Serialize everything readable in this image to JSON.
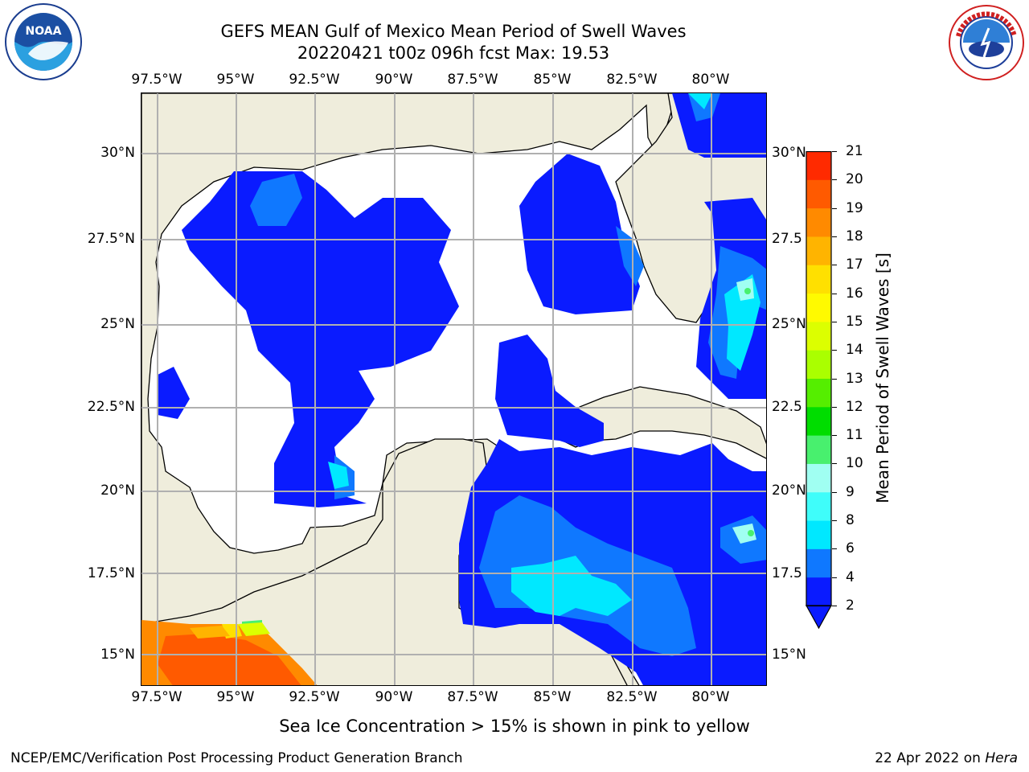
{
  "header": {
    "title_line1": "GEFS MEAN Gulf of Mexico Mean Period of Swell Waves",
    "title_line2": "20220421 t00z 096h fcst   Max: 19.53"
  },
  "logos": {
    "left": {
      "name": "noaa-logo",
      "text": "NOAA",
      "ring_text": "NATIONAL OCEANIC AND ATMOSPHERIC ADMINISTRATION"
    },
    "right": {
      "name": "nws-logo",
      "ring_text": "NATIONAL WEATHER SERVICE"
    }
  },
  "map": {
    "lon_labels_top": [
      "97.5°W",
      "95°W",
      "92.5°W",
      "90°W",
      "87.5°W",
      "85°W",
      "82.5°W",
      "80°W"
    ],
    "lon_labels_bottom": [
      "97.5°W",
      "95°W",
      "92.5°W",
      "90°W",
      "87.5°W",
      "85°W",
      "82.5°W",
      "80°W"
    ],
    "lat_labels_left": [
      "30°N",
      "27.5°N",
      "25°N",
      "22.5°N",
      "20°N",
      "17.5°N",
      "15°N"
    ],
    "lat_labels_right": [
      "30°N",
      "27.5",
      "25°N",
      "22.5",
      "20°N",
      "17.5",
      "15°N"
    ],
    "colors": {
      "land": "#efeddc",
      "ocean_low": "#ffffff",
      "grid": "#b0b0b0",
      "coast": "#000000"
    }
  },
  "colorbar": {
    "label": "Mean Period of Swell Waves [s]",
    "ticks": [
      "2",
      "4",
      "6",
      "8",
      "9",
      "10",
      "11",
      "12",
      "13",
      "14",
      "15",
      "16",
      "17",
      "18",
      "19",
      "20",
      "21"
    ],
    "colors": [
      "#0a1bff",
      "#0f78ff",
      "#00e8ff",
      "#3ffdfa",
      "#a0fff2",
      "#48f06e",
      "#00dd00",
      "#55ee00",
      "#aaff00",
      "#dcff00",
      "#fffa00",
      "#ffe000",
      "#ffb400",
      "#ff8a00",
      "#ff5a00",
      "#ff2a00",
      "#ff0000"
    ]
  },
  "footer": {
    "ice_note": "Sea Ice Concentration > 15% is shown in pink to yellow",
    "credit": "NCEP/EMC/Verification Post Processing Product Generation Branch",
    "date": "22 Apr 2022 on ",
    "machine": "Hera"
  }
}
